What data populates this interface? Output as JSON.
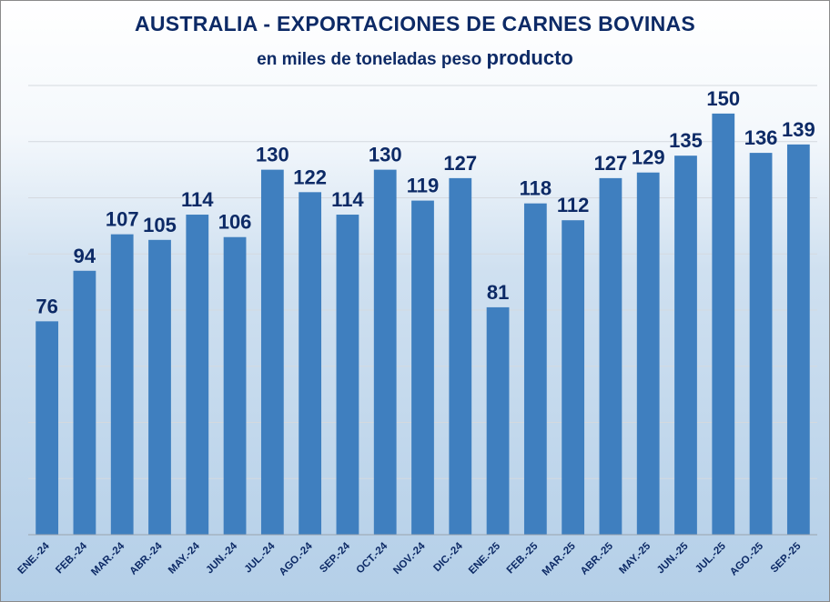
{
  "chart_data": {
    "type": "bar",
    "title": "AUSTRALIA - EXPORTACIONES DE CARNES BOVINAS",
    "subtitle_prefix": "en miles de toneladas peso ",
    "subtitle_emphasis": "producto",
    "xlabel": "",
    "ylabel": "",
    "ylim": [
      0,
      160
    ],
    "grid": true,
    "legend": "none",
    "categories": [
      "ENE.-24",
      "FEB.-24",
      "MAR.-24",
      "ABR.-24",
      "MAY.-24",
      "JUN.-24",
      "JUL.-24",
      "AGO.-24",
      "SEP.-24",
      "OCT.-24",
      "NOV.-24",
      "DIC.-24",
      "ENE.-25",
      "FEB.-25",
      "MAR.-25",
      "ABR.-25",
      "MAY.-25",
      "JUN.-25",
      "JUL.-25",
      "AGO.-25",
      "SEP.-25"
    ],
    "values": [
      76,
      94,
      107,
      105,
      114,
      106,
      130,
      122,
      114,
      130,
      119,
      127,
      81,
      118,
      112,
      127,
      129,
      135,
      150,
      136,
      139
    ],
    "bar_color": "#3f7fbf",
    "label_color": "#0d2a66"
  }
}
